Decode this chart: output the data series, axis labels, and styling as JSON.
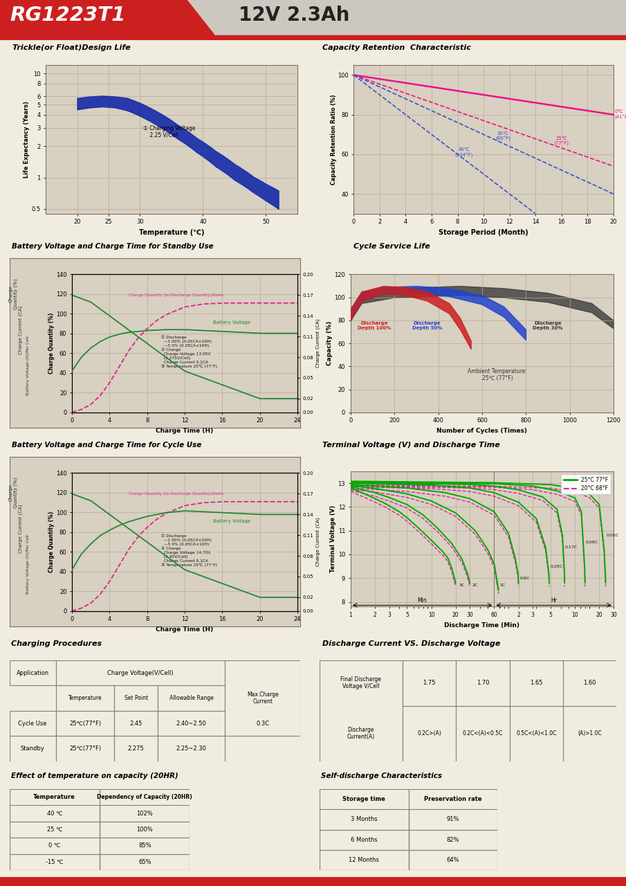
{
  "title_model": "RG1223T1",
  "title_spec": "12V 2.3Ah",
  "red": "#cc2020",
  "page_bg": "#f0ece0",
  "chart_bg": "#d8d0c0",
  "grid_col": "#b8a898",
  "border_col": "#807060",
  "sections": [
    "Trickle(or Float)Design Life",
    "Capacity Retention  Characteristic",
    "Battery Voltage and Charge Time for Standby Use",
    "Cycle Service Life",
    "Battery Voltage and Charge Time for Cycle Use",
    "Terminal Voltage (V) and Discharge Time",
    "Charging Procedures",
    "Discharge Current VS. Discharge Voltage",
    "Effect of temperature on capacity (20HR)",
    "Self-discharge Characteristics"
  ]
}
